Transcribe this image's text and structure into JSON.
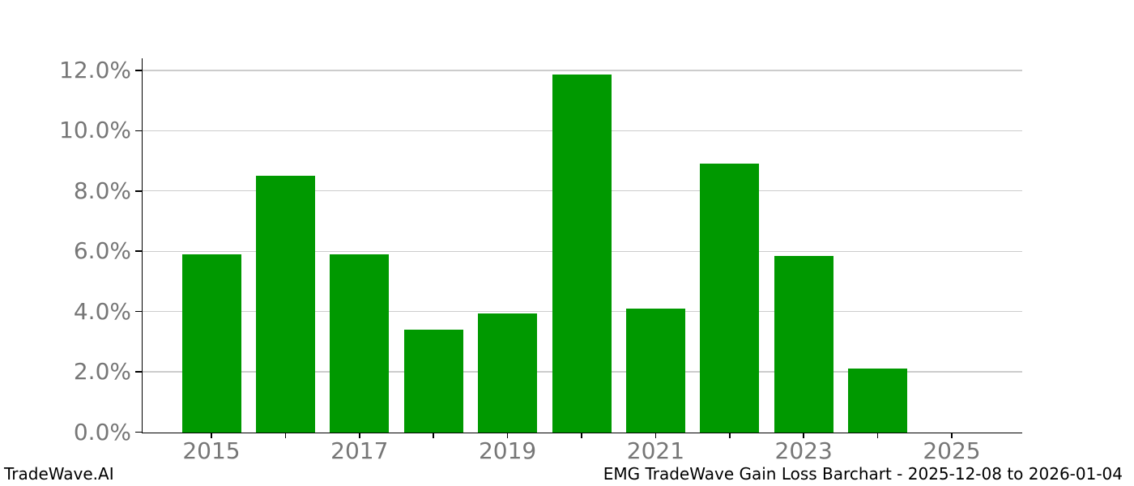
{
  "footer": {
    "brand": "TradeWave.AI",
    "caption": "EMG TradeWave Gain Loss Barchart - 2025-12-08 to 2026-01-04"
  },
  "chart_data": {
    "type": "bar",
    "title": "",
    "xlabel": "",
    "ylabel": "",
    "categories": [
      "2015",
      "2016",
      "2017",
      "2018",
      "2019",
      "2020",
      "2021",
      "2022",
      "2023",
      "2024",
      "2025"
    ],
    "values": [
      5.9,
      8.5,
      5.9,
      3.4,
      3.95,
      11.85,
      4.1,
      8.9,
      5.85,
      2.1,
      0
    ],
    "x_tick_labels": [
      "2015",
      "2017",
      "2019",
      "2021",
      "2023",
      "2025"
    ],
    "x_label_every": 2,
    "y_ticks": [
      0,
      2,
      4,
      6,
      8,
      10,
      12
    ],
    "y_tick_suffix": "%",
    "y_tick_decimals": 1,
    "ylim": [
      0,
      12.4
    ],
    "grid": true,
    "legend": "none",
    "bar_color": "#009900",
    "gridline_color": "#cccccc",
    "axis_color": "#000000",
    "tick_label_color": "#767676"
  }
}
